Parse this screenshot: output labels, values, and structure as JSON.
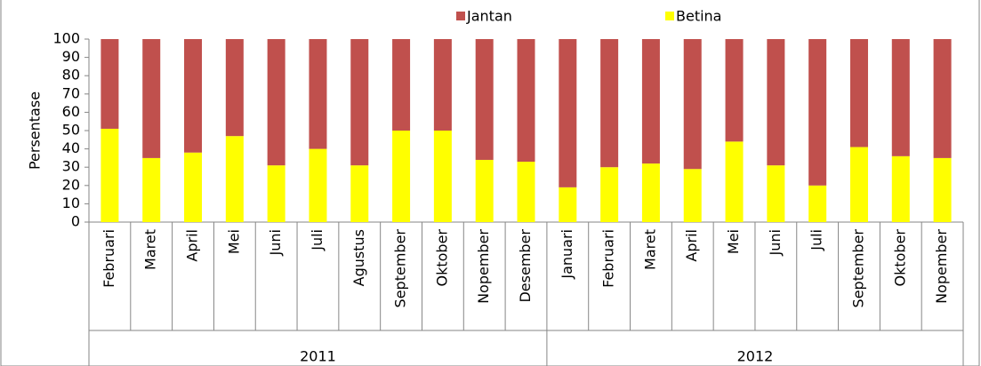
{
  "chart_data": {
    "type": "stacked_bar",
    "y_label": "Persentase",
    "groups": [
      {
        "name": "2011",
        "categories": [
          "Februari",
          "Maret",
          "April",
          "Mei",
          "Juni",
          "Juli",
          "Agustus",
          "September",
          "Oktober",
          "Nopember",
          "Desember"
        ]
      },
      {
        "name": "2012",
        "categories": [
          "Januari",
          "Februari",
          "Maret",
          "April",
          "Mei",
          "Juni",
          "Juli",
          "September",
          "Oktober",
          "Nopember"
        ]
      }
    ],
    "series": [
      {
        "name": "Betina",
        "color": "#ffff00",
        "values": [
          51,
          35,
          38,
          47,
          31,
          40,
          31,
          50,
          50,
          34,
          33,
          19,
          30,
          32,
          29,
          44,
          31,
          20,
          41,
          36,
          35
        ]
      },
      {
        "name": "Jantan",
        "color": "#c0504d",
        "values": [
          49,
          65,
          62,
          53,
          69,
          60,
          69,
          50,
          50,
          66,
          67,
          81,
          70,
          68,
          71,
          56,
          69,
          80,
          59,
          64,
          65
        ]
      }
    ],
    "legend_series_order": [
      "Jantan",
      "Betina"
    ],
    "ylim": [
      0,
      100
    ],
    "yticks": [
      0,
      10,
      20,
      30,
      40,
      50,
      60,
      70,
      80,
      90,
      100
    ]
  }
}
